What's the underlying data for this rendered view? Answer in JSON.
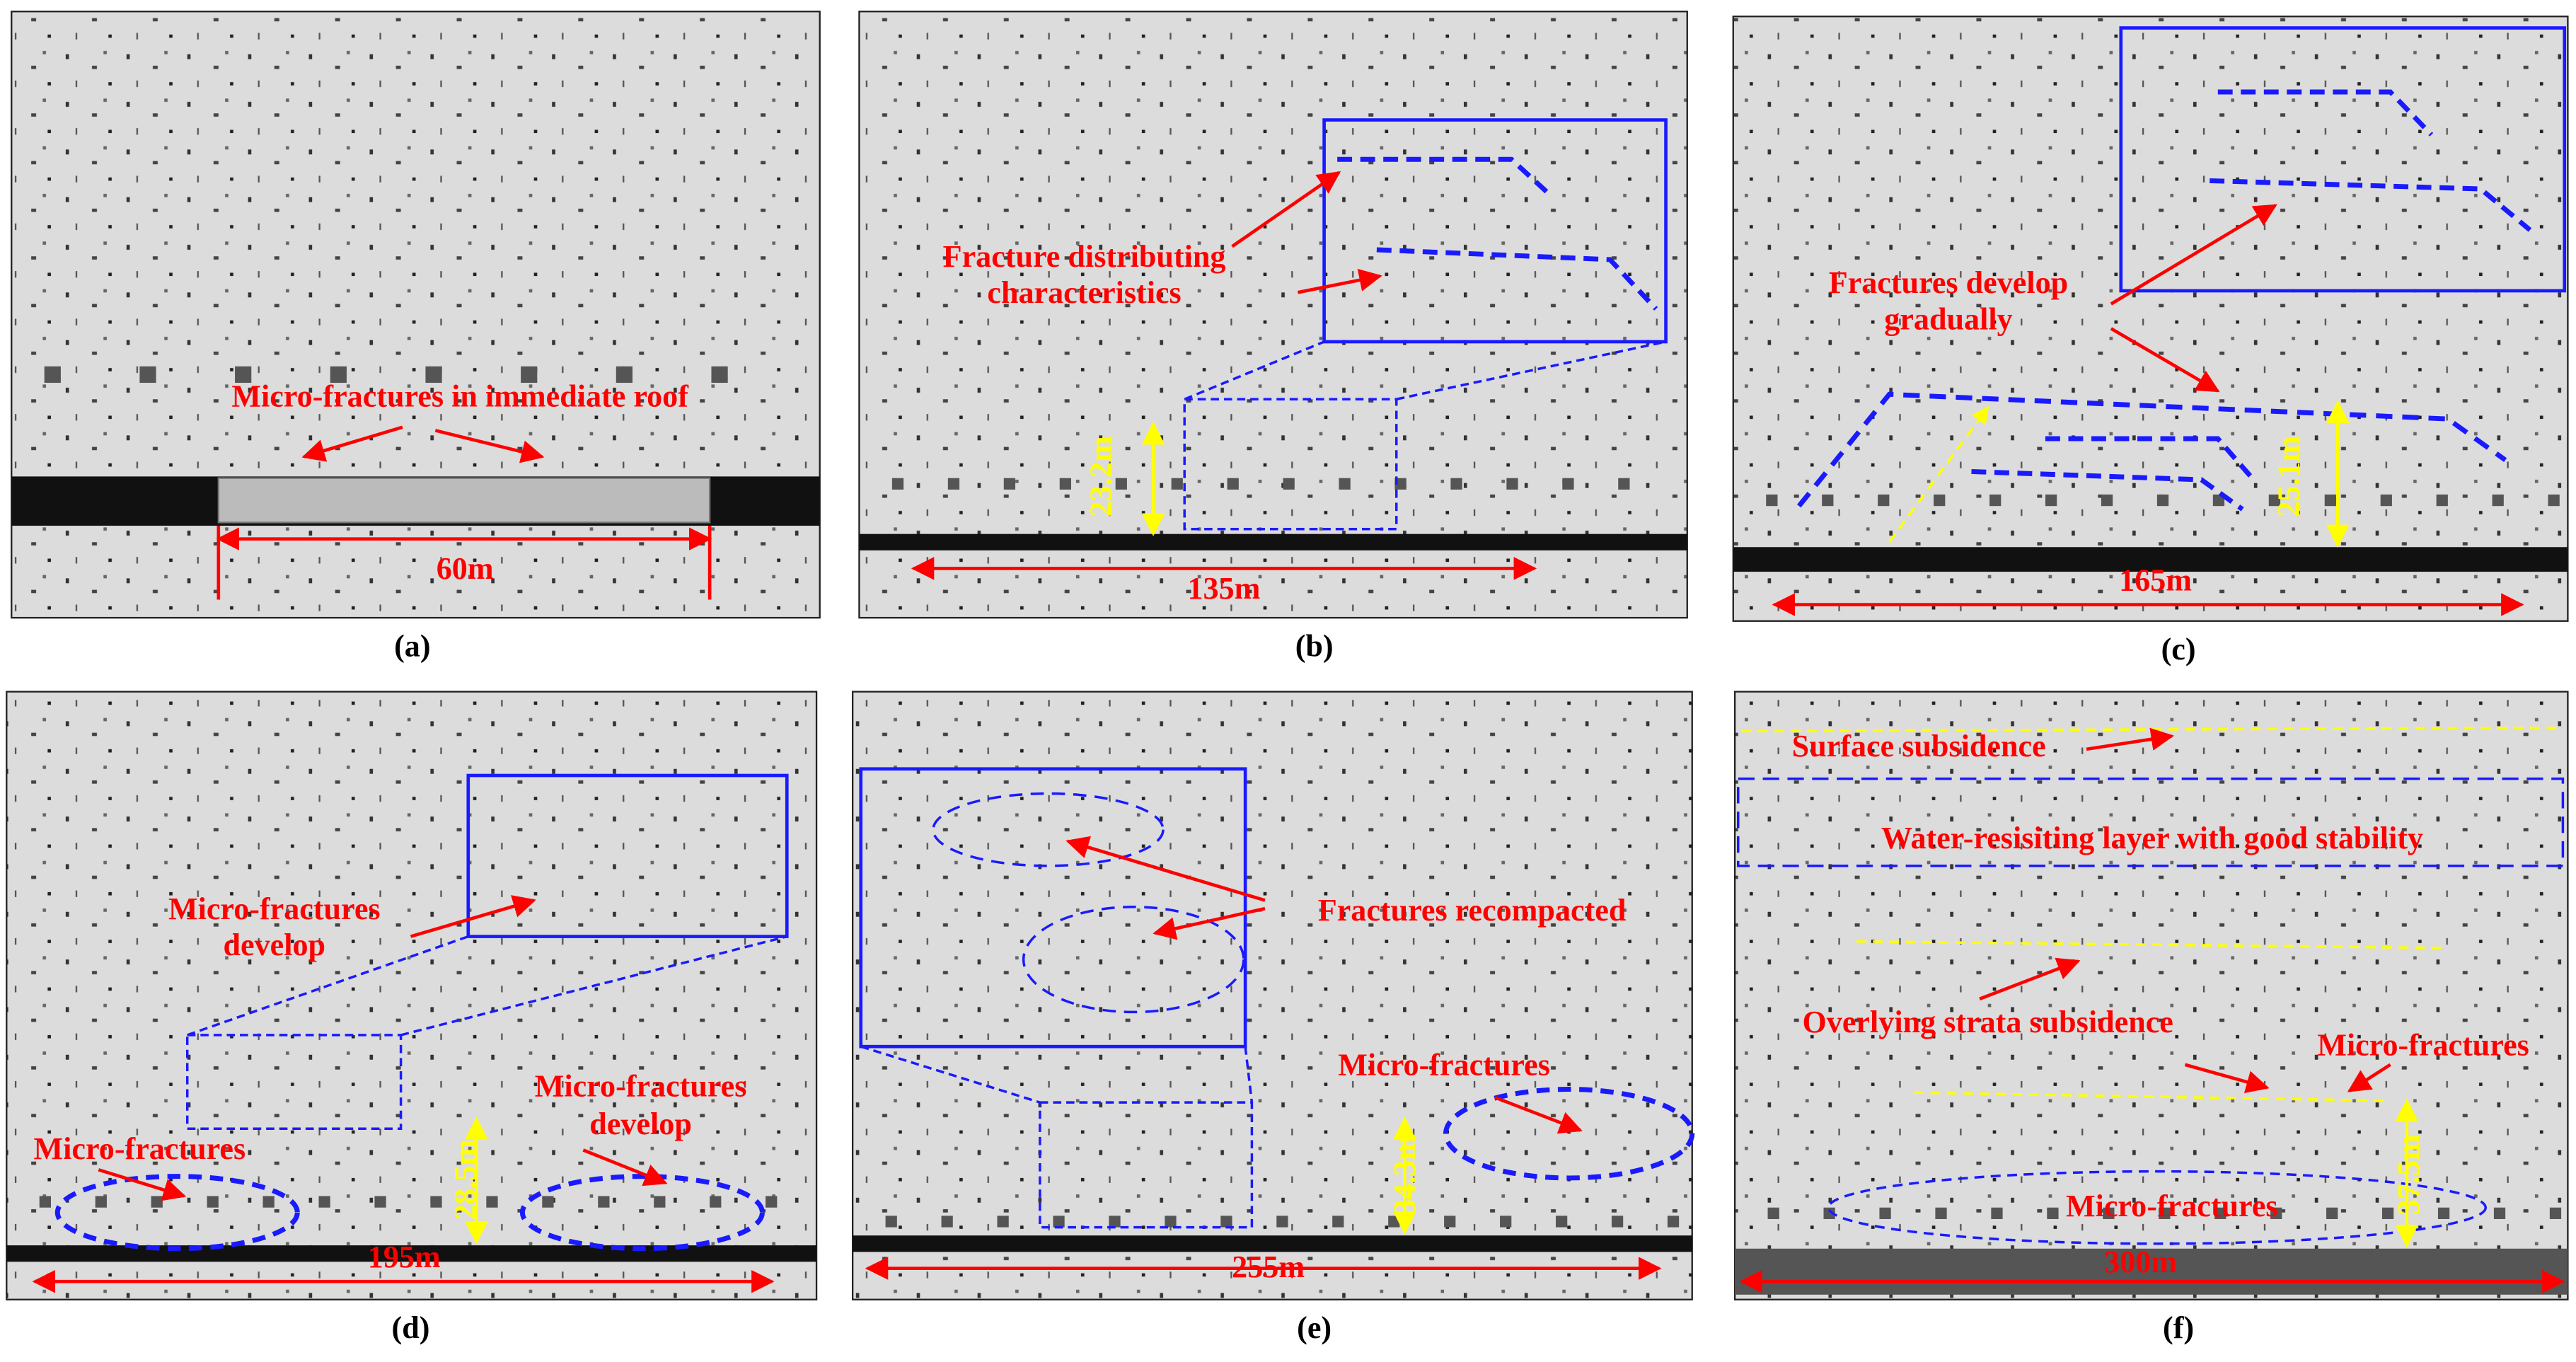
{
  "panels": [
    {
      "label": "(a)",
      "texts": [
        "Micro-fractures in immediate roof",
        "60m"
      ]
    },
    {
      "label": "(b)",
      "texts": [
        "Fracture distributing",
        "characteristics",
        "135m",
        "23.2m"
      ]
    },
    {
      "label": "(c)",
      "texts": [
        "Fractures develop",
        "gradually",
        "165m",
        "25.1m"
      ]
    },
    {
      "label": "(d)",
      "texts": [
        "Micro-fractures",
        "develop",
        "Micro-fractures",
        "Micro-fractures",
        "develop",
        "28.5m",
        "195m"
      ]
    },
    {
      "label": "(e)",
      "texts": [
        "Fractures recompacted",
        "Micro-fractures",
        "34.3m",
        "255m"
      ]
    },
    {
      "label": "(f)",
      "texts": [
        "Surface subsidence",
        "Water-resisiting layer with good stability",
        "Overlying strata subsidence",
        "Micro-fractures",
        "Micro-fractures",
        "37.5m",
        "300m"
      ]
    }
  ]
}
